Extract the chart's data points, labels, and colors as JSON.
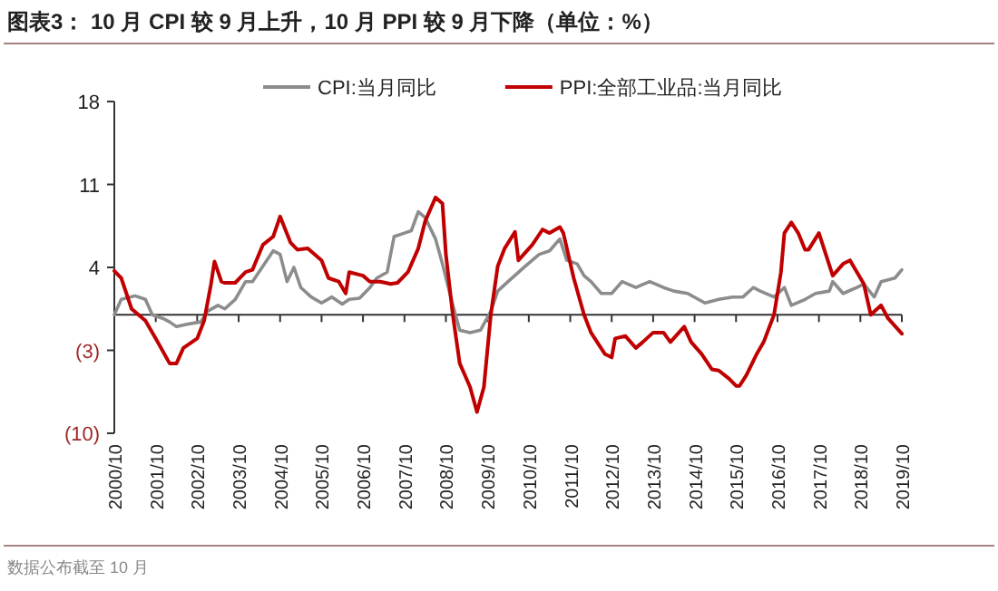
{
  "chart_data": {
    "type": "line",
    "title": "图表3： 10 月 CPI 较 9 月上升，10 月 PPI 较 9 月下降（单位：%）",
    "annotations": [
      "数据公布截至 10 月"
    ],
    "legend": "top",
    "grid": false,
    "marker": "none",
    "line_style": "solid",
    "xlim": [
      "2000-10",
      "2019-10"
    ],
    "xticks": [
      {
        "value": "2000-10",
        "label": "2000/10"
      },
      {
        "value": "2001-10",
        "label": "2001/10"
      },
      {
        "value": "2002-10",
        "label": "2002/10"
      },
      {
        "value": "2003-10",
        "label": "2003/10"
      },
      {
        "value": "2004-10",
        "label": "2004/10"
      },
      {
        "value": "2005-10",
        "label": "2005/10"
      },
      {
        "value": "2006-10",
        "label": "2006/10"
      },
      {
        "value": "2007-10",
        "label": "2007/10"
      },
      {
        "value": "2008-10",
        "label": "2008/10"
      },
      {
        "value": "2009-10",
        "label": "2009/10"
      },
      {
        "value": "2010-10",
        "label": "2010/10"
      },
      {
        "value": "2011-10",
        "label": "2011/10"
      },
      {
        "value": "2012-10",
        "label": "2012/10"
      },
      {
        "value": "2013-10",
        "label": "2013/10"
      },
      {
        "value": "2014-10",
        "label": "2014/10"
      },
      {
        "value": "2015-10",
        "label": "2015/10"
      },
      {
        "value": "2016-10",
        "label": "2016/10"
      },
      {
        "value": "2017-10",
        "label": "2017/10"
      },
      {
        "value": "2018-10",
        "label": "2018/10"
      },
      {
        "value": "2019-10",
        "label": "2019/10"
      }
    ],
    "ylim": [
      -10,
      18
    ],
    "yticks": [
      18,
      11,
      4,
      {
        "value": -3,
        "label": "(3)"
      },
      {
        "value": -10,
        "label": "(10)"
      }
    ],
    "series": [
      {
        "name": "CPI:当月同比",
        "color": "#8c8c8c",
        "x": [
          "2000-10",
          "2000-12",
          "2001-04",
          "2001-07",
          "2001-09",
          "2001-12",
          "2002-02",
          "2002-04",
          "2002-07",
          "2002-11",
          "2003-01",
          "2003-04",
          "2003-06",
          "2003-09",
          "2003-12",
          "2004-02",
          "2004-05",
          "2004-08",
          "2004-10",
          "2004-12",
          "2005-02",
          "2005-04",
          "2005-07",
          "2005-10",
          "2006-01",
          "2006-04",
          "2006-06",
          "2006-09",
          "2006-12",
          "2007-02",
          "2007-05",
          "2007-07",
          "2007-10",
          "2007-12",
          "2008-02",
          "2008-04",
          "2008-07",
          "2008-09",
          "2008-12",
          "2009-02",
          "2009-05",
          "2009-08",
          "2009-11",
          "2010-01",
          "2010-04",
          "2010-09",
          "2011-01",
          "2011-04",
          "2011-07",
          "2011-09",
          "2011-12",
          "2012-02",
          "2012-04",
          "2012-07",
          "2012-10",
          "2013-01",
          "2013-05",
          "2013-09",
          "2014-01",
          "2014-04",
          "2014-08",
          "2015-01",
          "2015-05",
          "2015-09",
          "2015-12",
          "2016-03",
          "2016-05",
          "2016-09",
          "2016-12",
          "2017-02",
          "2017-06",
          "2017-09",
          "2018-01",
          "2018-02",
          "2018-05",
          "2018-09",
          "2018-11",
          "2019-02",
          "2019-04",
          "2019-08",
          "2019-10"
        ],
        "values": [
          0,
          1.3,
          1.6,
          1.3,
          0,
          -0.3,
          -0.6,
          -1.0,
          -0.8,
          -0.6,
          0.3,
          0.8,
          0.5,
          1.3,
          2.8,
          2.8,
          4.1,
          5.4,
          5.1,
          2.8,
          4.0,
          2.3,
          1.5,
          1.0,
          1.5,
          0.9,
          1.3,
          1.4,
          2.3,
          3.1,
          3.6,
          6.6,
          6.9,
          7.1,
          8.7,
          8.2,
          6.4,
          4.3,
          0.8,
          -1.3,
          -1.5,
          -1.3,
          0.3,
          2.0,
          2.8,
          4.1,
          5.1,
          5.4,
          6.4,
          4.6,
          4.3,
          3.3,
          2.8,
          1.8,
          1.8,
          2.8,
          2.3,
          2.8,
          2.3,
          2.0,
          1.8,
          1.0,
          1.3,
          1.5,
          1.5,
          2.3,
          2.0,
          1.5,
          2.3,
          0.8,
          1.3,
          1.8,
          2.0,
          2.8,
          1.8,
          2.3,
          2.6,
          1.5,
          2.8,
          3.1,
          3.8
        ]
      },
      {
        "name": "PPI:全部工业品:当月同比",
        "color": "#c00000",
        "x": [
          "2000-10",
          "2000-12",
          "2001-03",
          "2001-07",
          "2001-10",
          "2002-02",
          "2002-04",
          "2002-06",
          "2002-10",
          "2002-12",
          "2003-02",
          "2003-03",
          "2003-05",
          "2003-06",
          "2003-09",
          "2003-12",
          "2004-02",
          "2004-05",
          "2004-08",
          "2004-10",
          "2005-01",
          "2005-03",
          "2005-06",
          "2005-10",
          "2005-12",
          "2006-03",
          "2006-05",
          "2006-06",
          "2006-10",
          "2006-12",
          "2007-03",
          "2007-06",
          "2007-08",
          "2007-11",
          "2008-02",
          "2008-04",
          "2008-07",
          "2008-09",
          "2008-10",
          "2008-12",
          "2009-02",
          "2009-05",
          "2009-07",
          "2009-09",
          "2009-11",
          "2010-01",
          "2010-03",
          "2010-06",
          "2010-07",
          "2010-11",
          "2011-02",
          "2011-04",
          "2011-07",
          "2011-08",
          "2011-11",
          "2012-02",
          "2012-04",
          "2012-08",
          "2012-10",
          "2012-11",
          "2013-02",
          "2013-05",
          "2013-07",
          "2013-10",
          "2014-01",
          "2014-03",
          "2014-07",
          "2014-09",
          "2014-12",
          "2015-03",
          "2015-05",
          "2015-08",
          "2015-10",
          "2015-11",
          "2016-01",
          "2016-04",
          "2016-06",
          "2016-09",
          "2016-11",
          "2016-12",
          "2017-02",
          "2017-04",
          "2017-06",
          "2017-07",
          "2017-10",
          "2017-12",
          "2018-02",
          "2018-05",
          "2018-07",
          "2018-09",
          "2018-11",
          "2019-01",
          "2019-04",
          "2019-06",
          "2019-10"
        ],
        "values": [
          3.7,
          3.1,
          0.5,
          -0.5,
          -2.0,
          -4.1,
          -4.1,
          -2.8,
          -2.0,
          -0.5,
          2.6,
          4.5,
          2.8,
          2.7,
          2.7,
          3.6,
          3.8,
          5.9,
          6.6,
          8.3,
          6.1,
          5.5,
          5.6,
          4.6,
          3.1,
          2.8,
          1.8,
          3.6,
          3.3,
          2.8,
          2.8,
          2.6,
          2.7,
          3.6,
          5.6,
          7.9,
          9.9,
          9.4,
          5.1,
          0,
          -4.1,
          -6.1,
          -8.2,
          -6.1,
          0,
          4.1,
          5.6,
          7.0,
          4.6,
          5.9,
          7.2,
          6.9,
          7.4,
          6.9,
          3.1,
          0,
          -1.5,
          -3.3,
          -3.6,
          -2.0,
          -1.8,
          -2.8,
          -2.3,
          -1.5,
          -1.5,
          -2.3,
          -1.0,
          -2.3,
          -3.3,
          -4.6,
          -4.7,
          -5.4,
          -6.0,
          -6.0,
          -5.1,
          -3.3,
          -2.3,
          0,
          3.6,
          6.9,
          7.8,
          6.9,
          5.5,
          5.5,
          6.9,
          5.1,
          3.3,
          4.3,
          4.6,
          3.6,
          2.6,
          0,
          0.8,
          -0.3,
          -1.6
        ]
      }
    ]
  }
}
